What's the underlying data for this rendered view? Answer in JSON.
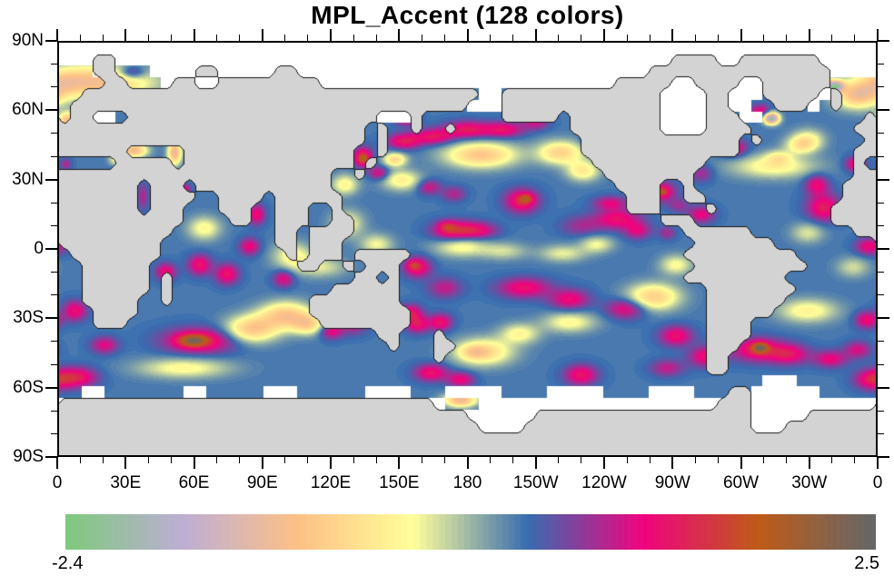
{
  "title": "MPL_Accent (128 colors)",
  "colorbar": {
    "min_label": "-2.4",
    "max_label": "2.5"
  },
  "chart_data": {
    "type": "heatmap",
    "subtype": "filled-contour-world-map",
    "title": "MPL_Accent (128 colors)",
    "projection": "equirectangular, Pacific-centered, longitude 0E at left edge to 360 (0) at right edge",
    "colormap": {
      "name": "MPL_Accent",
      "n_colors": 128,
      "stops": [
        "#7fc97f",
        "#beaed4",
        "#fdc086",
        "#ffff99",
        "#386cb0",
        "#f0027f",
        "#bf5b17",
        "#666666"
      ]
    },
    "colorbar": {
      "vmin": -2.4,
      "vmax": 2.5,
      "min_label": "-2.4",
      "max_label": "2.5",
      "position": "horizontal-bottom"
    },
    "x_axis": {
      "range_deg": [
        0,
        360
      ],
      "major_tick_interval_deg": 30,
      "minor_tick_interval_deg": 10,
      "tick_labels": [
        [
          "0",
          0
        ],
        [
          "30E",
          30
        ],
        [
          "60E",
          60
        ],
        [
          "90E",
          90
        ],
        [
          "120E",
          120
        ],
        [
          "150E",
          150
        ],
        [
          "180",
          180
        ],
        [
          "150W",
          210
        ],
        [
          "120W",
          240
        ],
        [
          "90W",
          270
        ],
        [
          "60W",
          300
        ],
        [
          "30W",
          330
        ],
        [
          "0",
          360
        ]
      ]
    },
    "y_axis": {
      "range_deg": [
        -90,
        90
      ],
      "major_tick_interval_deg": 30,
      "minor_tick_interval_deg": 10,
      "tick_labels": [
        [
          "90N",
          90
        ],
        [
          "60N",
          60
        ],
        [
          "30N",
          30
        ],
        [
          "0",
          0
        ],
        [
          "30S",
          -30
        ],
        [
          "60S",
          -60
        ],
        [
          "90S",
          -90
        ]
      ]
    },
    "grid": "off",
    "map_colors": {
      "land": "#d3d3d3",
      "coastline": "#161616",
      "masked_ice": "#ffffff"
    },
    "field": {
      "description": "ocean anomaly field approximated as sum of gaussian blobs [lon, lat, amplitude, sigma_lon_deg, sigma_lat_deg] over base value",
      "base_value": 0.35,
      "blobs": [
        [
          18,
          73,
          -1.45,
          16,
          5
        ],
        [
          32,
          77,
          0.9,
          4,
          2
        ],
        [
          2,
          73,
          -0.5,
          6,
          4
        ],
        [
          352,
          67,
          -1.35,
          7,
          4
        ],
        [
          342,
          71,
          -2.65,
          2.5,
          1.6
        ],
        [
          336,
          73,
          -1.9,
          2.2,
          1.5
        ],
        [
          4,
          56,
          -1.5,
          3,
          2.5
        ],
        [
          17,
          56,
          -1.5,
          2.5,
          1.5
        ],
        [
          314,
          57,
          -2.9,
          2.2,
          1.6
        ],
        [
          309,
          60,
          0.85,
          3,
          2
        ],
        [
          330,
          48,
          -0.7,
          5,
          3
        ],
        [
          297,
          44,
          0.95,
          4,
          2.5
        ],
        [
          315,
          36,
          -0.8,
          13,
          3.5
        ],
        [
          317,
          40,
          -0.6,
          4,
          2
        ],
        [
          283,
          33,
          0.5,
          3.5,
          2.5
        ],
        [
          327,
          45,
          -0.75,
          5,
          2.5
        ],
        [
          351,
          37,
          0.95,
          3,
          2.2
        ],
        [
          334,
          28,
          0.85,
          3.5,
          3
        ],
        [
          337,
          18,
          1.0,
          5,
          4
        ],
        [
          330,
          7,
          -0.55,
          5,
          3
        ],
        [
          357,
          1,
          0.85,
          4,
          2.5
        ],
        [
          350,
          -8,
          -0.5,
          5,
          3
        ],
        [
          265,
          25,
          0.95,
          4.5,
          3
        ],
        [
          266,
          25,
          0.65,
          1.8,
          1.2
        ],
        [
          283,
          15,
          0.8,
          4,
          2.5
        ],
        [
          273,
          19,
          0.45,
          3,
          2
        ],
        [
          330,
          -27,
          -0.8,
          9,
          3.5
        ],
        [
          356,
          -31,
          0.9,
          3.5,
          2.5
        ],
        [
          308,
          -44,
          1.0,
          8,
          3.5
        ],
        [
          309,
          -43,
          1.3,
          2.5,
          1.5
        ],
        [
          322,
          -46,
          0.85,
          6,
          3
        ],
        [
          340,
          -48,
          0.8,
          5,
          2.5
        ],
        [
          352,
          -44,
          0.7,
          4,
          2.5
        ],
        [
          7,
          -27,
          0.9,
          3.5,
          3
        ],
        [
          20,
          -42,
          0.75,
          4,
          2.5
        ],
        [
          8,
          -56,
          1.0,
          6,
          3
        ],
        [
          358,
          -57,
          0.95,
          5,
          3
        ],
        [
          55,
          -52,
          -0.75,
          14,
          3
        ],
        [
          62,
          -40,
          1.05,
          11,
          3.8
        ],
        [
          59,
          -40,
          1.15,
          4.5,
          1.8
        ],
        [
          85,
          -35,
          -1.3,
          8,
          4
        ],
        [
          100,
          -29,
          -1.3,
          8,
          4
        ],
        [
          110,
          -33,
          -1.0,
          5,
          3
        ],
        [
          47,
          -10,
          0.9,
          3,
          2.5
        ],
        [
          62,
          -7,
          0.95,
          3.5,
          3
        ],
        [
          74,
          -11,
          0.95,
          3.5,
          3
        ],
        [
          84,
          1,
          0.85,
          3,
          2.5
        ],
        [
          99,
          -13,
          0.8,
          3,
          2.5
        ],
        [
          64,
          9,
          -0.75,
          5,
          3.5
        ],
        [
          87,
          15,
          0.9,
          2.5,
          3
        ],
        [
          37,
          23,
          0.55,
          1.5,
          4
        ],
        [
          55,
          26,
          0.9,
          2,
          1.5
        ],
        [
          3,
          37,
          0.6,
          1.5,
          1.5
        ],
        [
          25,
          39,
          -0.8,
          2,
          1.5
        ],
        [
          33,
          43,
          -1.6,
          4,
          2
        ],
        [
          51,
          42,
          -1.7,
          2,
          3.5
        ],
        [
          103,
          -3,
          -0.75,
          6,
          4
        ],
        [
          115,
          -8,
          -0.55,
          8,
          3
        ],
        [
          127,
          11,
          -0.7,
          5,
          4
        ],
        [
          140,
          2,
          -0.65,
          5,
          3
        ],
        [
          120,
          -36,
          0.85,
          3.5,
          2.2
        ],
        [
          130,
          -34,
          0.5,
          4,
          2.5
        ],
        [
          155,
          -28,
          0.95,
          3.5,
          2.5
        ],
        [
          158,
          -33,
          0.9,
          3.5,
          2.5
        ],
        [
          168,
          -32,
          0.95,
          3.5,
          2.5
        ],
        [
          164,
          -54,
          0.95,
          5,
          2.5
        ],
        [
          177,
          -57,
          0.85,
          4,
          2.2
        ],
        [
          187,
          -45,
          -1.1,
          9,
          4
        ],
        [
          183,
          -45,
          -0.5,
          4,
          2
        ],
        [
          203,
          -37,
          -0.75,
          6,
          3
        ],
        [
          158,
          -8,
          1.0,
          4,
          3
        ],
        [
          156,
          -7,
          0.6,
          1.8,
          1.3
        ],
        [
          170,
          -17,
          0.6,
          5,
          3
        ],
        [
          205,
          -17,
          0.9,
          8,
          3
        ],
        [
          225,
          -22,
          0.85,
          6,
          3
        ],
        [
          250,
          -26,
          0.85,
          6,
          3
        ],
        [
          262,
          -21,
          -1.2,
          8,
          4
        ],
        [
          230,
          -55,
          0.95,
          5,
          3
        ],
        [
          268,
          -52,
          0.6,
          5,
          2.5
        ],
        [
          285,
          -47,
          0.9,
          5,
          3
        ],
        [
          272,
          -38,
          0.9,
          5,
          3
        ],
        [
          225,
          -32,
          -0.75,
          8,
          3
        ],
        [
          177,
          -66,
          -1.6,
          5,
          2
        ],
        [
          177,
          1,
          -0.75,
          8,
          3
        ],
        [
          196,
          -1,
          -0.5,
          7,
          2.5
        ],
        [
          222,
          -2,
          -0.6,
          7,
          2.5
        ],
        [
          237,
          2,
          -0.65,
          5,
          2.5
        ],
        [
          272,
          -7,
          -0.7,
          5,
          3
        ],
        [
          173,
          8,
          1.0,
          6,
          3
        ],
        [
          184,
          8,
          0.9,
          6,
          2.5
        ],
        [
          171,
          10,
          0.55,
          2.5,
          1.5
        ],
        [
          246,
          13,
          0.9,
          7,
          3
        ],
        [
          255,
          8,
          0.7,
          4,
          2.5
        ],
        [
          230,
          10,
          0.45,
          6,
          3
        ],
        [
          268,
          7,
          0.5,
          2.5,
          2
        ],
        [
          134,
          40,
          1.3,
          2.8,
          2.8
        ],
        [
          134,
          39,
          0.55,
          1.5,
          1.2
        ],
        [
          141,
          33,
          0.8,
          3,
          2
        ],
        [
          148,
          39,
          -1.15,
          3.5,
          2
        ],
        [
          151,
          30,
          -0.85,
          6,
          3
        ],
        [
          126,
          28,
          -0.8,
          4,
          3
        ],
        [
          152,
          47,
          1.0,
          5,
          2.3
        ],
        [
          165,
          49,
          0.95,
          6,
          2.3
        ],
        [
          153,
          57,
          0.9,
          3.5,
          2
        ],
        [
          180,
          52,
          1.0,
          7,
          2.5
        ],
        [
          196,
          52,
          0.9,
          6,
          2.3
        ],
        [
          210,
          55,
          0.65,
          4,
          2
        ],
        [
          186,
          41,
          -1.3,
          11,
          3.8
        ],
        [
          163,
          27,
          0.7,
          3.5,
          2.2
        ],
        [
          174,
          24,
          0.55,
          3.5,
          2.2
        ],
        [
          204,
          21,
          1.1,
          5,
          3.5
        ],
        [
          206,
          22,
          0.75,
          2,
          1.3
        ],
        [
          234,
          48,
          1.05,
          2.2,
          1.8
        ],
        [
          221,
          42,
          -1.15,
          7,
          3.5
        ],
        [
          231,
          34,
          -0.9,
          5,
          3
        ],
        [
          243,
          20,
          0.75,
          5,
          2
        ]
      ]
    },
    "land_grid_5deg": [
      "000000000000000000000000000000000000000000000000000000000000000000000000",
      "000110000000000000000000000000000000000000000000000000111100111111100000",
      "000110000000110000011000000000000000000000000000000011111111111111110000",
      "000011000011001111111110000000000000000000000000011111001111001111110000",
      "001111111111111111111111111111111111100111111111111110000110001111101000",
      "011111111111111111111111111111111111000111111111111110000110000111001000",
      "011000111111111111111111111100010000000111110111111110000111000000000001",
      "111111111111111111111111111010010010000000000111111110000111100000000011",
      "111111111111111111111111111010000000000000000011111111111111010000000001",
      "111111000001111111111111110010000000000000000011111111111111000000000011",
      "000001111101111111111111110100000000000000000001111111111000000000000010",
      "111111111111111111111111001000000000000000000000111111110000000000000011",
      "111111101110111111111111000000000000000000000000011110010000000000000111",
      "111111101111001111011111100000000000000000000000001110011000000000000111",
      "111111101110001110011100100000000000000000000000001110000100000000001111",
      "111111111110000110011100110000000000000000000000000001110000000000001111",
      "111111111100000000011011110000000000000000000000000000011111100000000011",
      "111111111000000000011011100000000000000000000000000000001111111000000000",
      "011111111000000000001011101111100000000000000000000000011111111110000000",
      "001111110000000000000110010111000000000000000000000000001111111111000000",
      "001111110100000000000000001101000000000000000000000000011111111100000000",
      "001111110100000000000000111111000000000000000000000000000111111110000000",
      "001111100100000000000011111111000000000000000000000000000111111100000000",
      "000111100000000000000011111111100000000000000000000000000111111000000000",
      "000111000000000000000001111111100000000000000000000000000111100000000000",
      "000000000000000000000000000011000100000000000000000000000111100000000000",
      "000000000000000000000000000001000110000000000000000000000111000000000000",
      "000000000000000000000000000000000100000000000000000000000110000000000000",
      "000000000000000000000000000000000000000000000000000000000110000000000000",
      "000000000000000000000000000000000000000000000000000000000000000000000000",
      "000000000000000000000000000000000000000000000000000000000001100000000000",
      "111111111111111111111111111111111000000000000000000000000011100000000000",
      "111111111111111111111111111111111111000000111111111111111111100000111111",
      "111111111111111111111111111111111111100001111111111111111111100011111111",
      "111111111111111111111111111111111111111111111111111111111111111111111111",
      "111111111111111111111111111111111111111111111111111111111111111111111111"
    ],
    "ice_grid_5deg": [
      "111111111111111111111111111111111111111111111111111111111111111111111111",
      "111111111111111111111111111111111111111111111111111111111111111111111111",
      "000110001111111111111111111111111111111111111111111111111111111111111111",
      "000000000111111111111111111111111111111111111111111111111111111111100000",
      "000000000111110000000000000000000000011000000000000001111001110000110000",
      "000110000000000000000000000000000000111000000000000001111001100000100000",
      "000110000000000000000000000011100000000000000000000001111000110000000000",
      "000000000000000000000000000000000000000000000000000001111000000000000000",
      "000000000000000000000000000000000000000000000000000000000000000000000000",
      "000000000000000000000000000000000000000000000000000000000000000000000000",
      "000000000000000000000000000000000000000000000000000000000000000000000000",
      "000000000000000000000000000000000000000000000000000000000000000000000000",
      "000000000000000000000000000000000000000000000000000000000000000000000000",
      "000000000000000000000000000000000000000000000000000000000000000000000000",
      "000000000000000000000000000000000000000000000000000000000000000000000000",
      "000000000000000000000000000000000000000000000000000000000000000000000000",
      "000000000000000000000000000000000000000000000000000000000000000000000000",
      "000000000000000000000000000000000000000000000000000000000000000000000000",
      "000000000000000000000000000000000000000000000000000000000000000000000000",
      "000000000000000000000000000000000000000000000000000000000000000000000000",
      "000000000000000000000000000000000000000000000000000000000000000000000000",
      "000000000000000000000000000000000000000000000000000000000000000000000000",
      "000000000000000000000000000000000000000000000000000000000000000000000000",
      "000000000000000000000000000000000000000000000000000000000000000000000000",
      "000000000000000000000000000000000000000000000000000000000000000000000000",
      "000000000000000000000000000000000000000000000000000000000000000000000000",
      "000000000000000000000000000000000000000000000000000000000000000000000000",
      "000000000000000000000000000000000000000000000000000000000000000000000000",
      "000000000000000000000000000000000000000000000000000000000000000000000000",
      "000000000000000000000000000000000000000000000000000000000000001110000000",
      "001100000001100000111000000111100011111000011111000011110000011111100000",
      "111111111111111111111111111111111100011111111111111111111111111111111111",
      "111111111111111111111111111111111111111111111111111111111111111111111111",
      "111111111111111111111111111111111111111111111111111111111111111111111111",
      "000000000000000000000000000000000000000000000000000000000000000000000000",
      "000000000000000000000000000000000000000000000000000000000000000000000000"
    ]
  }
}
